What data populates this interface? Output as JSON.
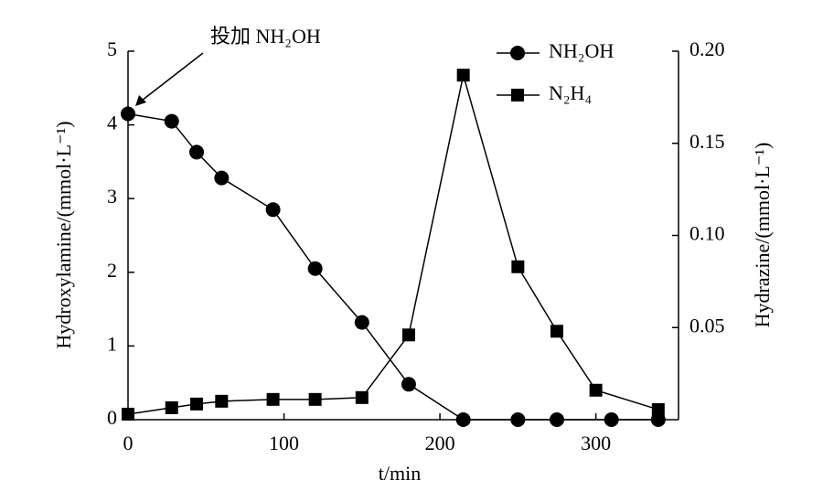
{
  "chart_data": {
    "type": "line",
    "xlabel": "t/min",
    "ylabel": "Hydroxylamine/(mmol·L⁻¹)",
    "y2label": "Hydrazine/(mmol·L⁻¹)",
    "annotation": "投加 NH₂OH",
    "xlim": [
      0,
      353
    ],
    "xticks": [
      0,
      100,
      200,
      300
    ],
    "ylim": [
      0,
      5
    ],
    "yticks": [
      0,
      1,
      2,
      3,
      4,
      5
    ],
    "y2lim": [
      0,
      0.2
    ],
    "y2ticks": [
      0.05,
      {
        "value": 0.1,
        "label": "0.10"
      },
      0.15,
      {
        "value": 0.2,
        "label": "0.20"
      }
    ],
    "legend": "upper right",
    "series": [
      {
        "name": "NH₂OH",
        "color": "#000000",
        "marker": "circle",
        "x": [
          0,
          28,
          44,
          60,
          93,
          120,
          150,
          180,
          215,
          250,
          275,
          310,
          340
        ],
        "values": [
          4.15,
          4.05,
          3.63,
          3.28,
          2.85,
          2.05,
          1.32,
          0.48,
          0,
          0,
          0,
          0,
          0
        ]
      },
      {
        "name": "N₂H₄",
        "color": "#000000",
        "marker": "square",
        "axis": "y2",
        "x": [
          0,
          28,
          44,
          60,
          93,
          120,
          150,
          180,
          215,
          250,
          275,
          300,
          340
        ],
        "values": [
          0.003,
          0.0065,
          0.0085,
          0.01,
          0.011,
          0.011,
          0.012,
          0.046,
          0.187,
          0.083,
          0.048,
          0.016,
          0.0055
        ]
      }
    ]
  }
}
